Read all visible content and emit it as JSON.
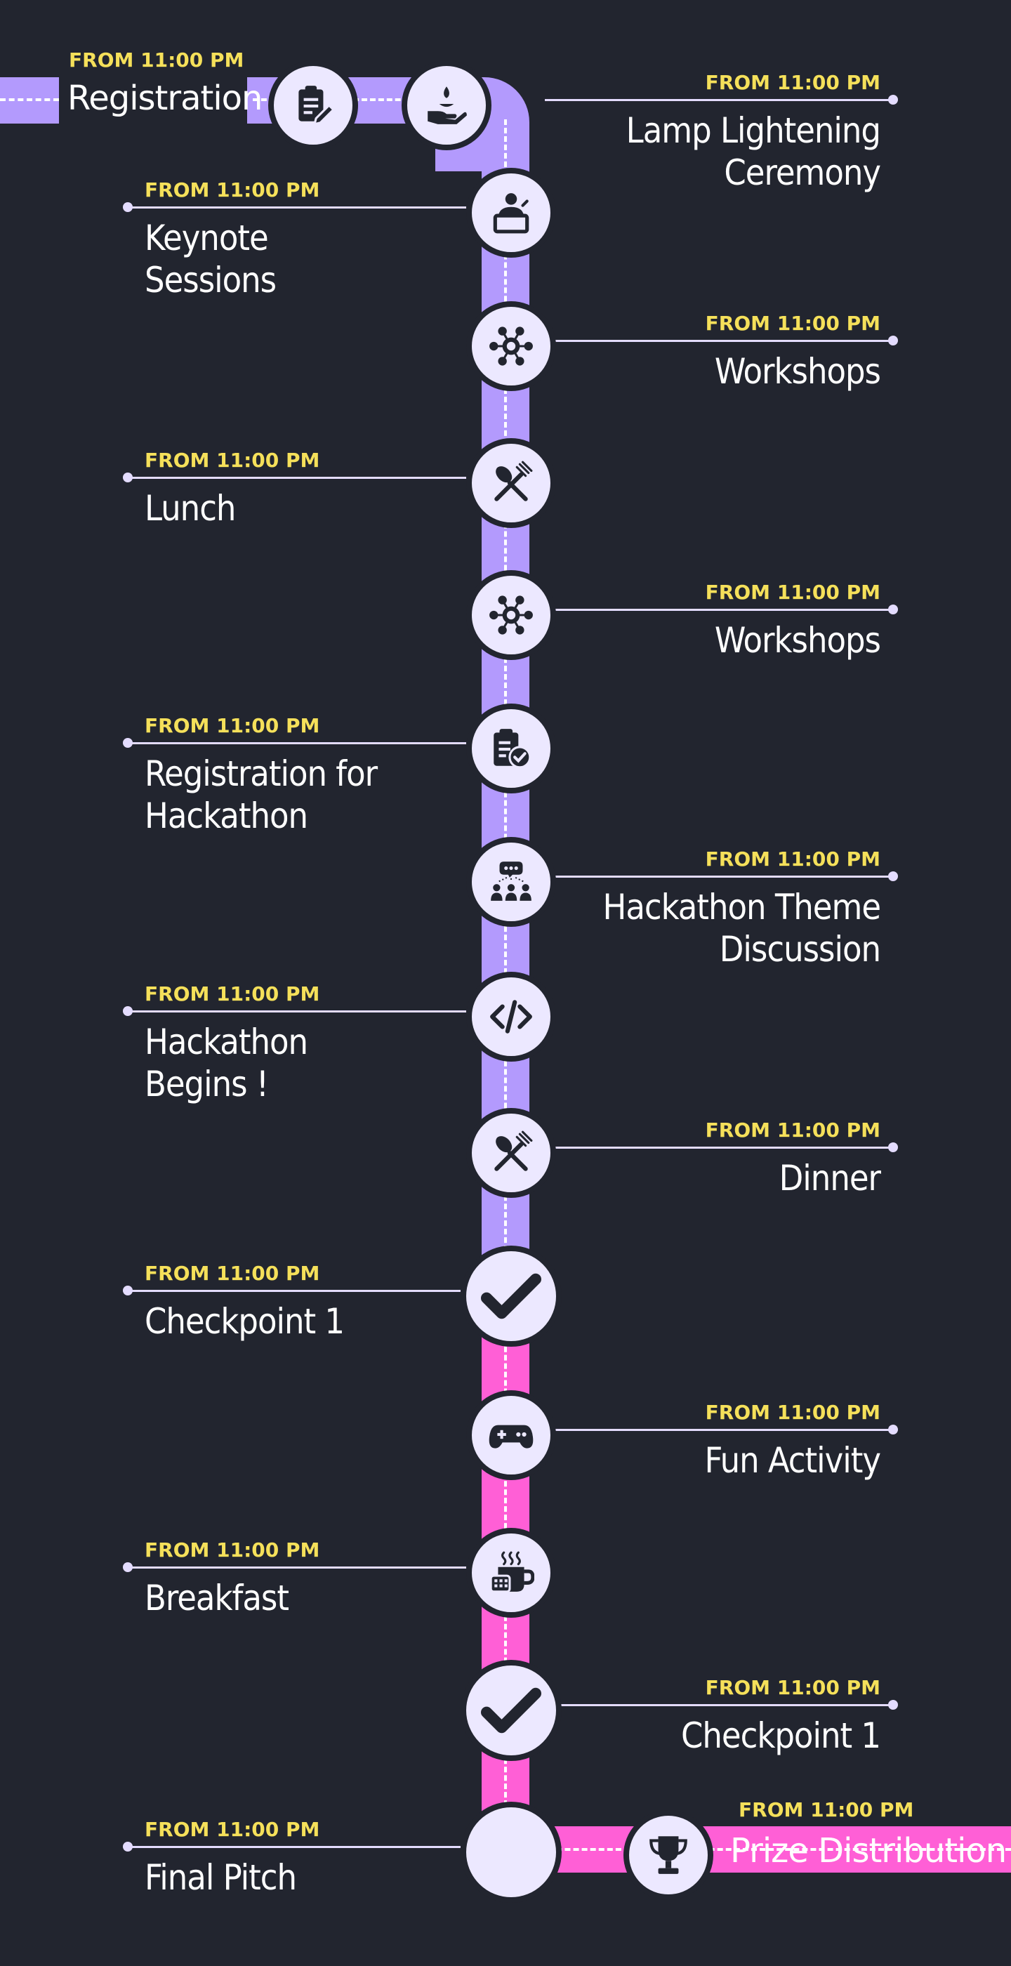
{
  "colors": {
    "background": "#22252f",
    "purple_track": "#b39afd",
    "pink_track": "#ff5fd6",
    "time": "#f5e05a",
    "node": "#ece8ff",
    "icon": "#22252f"
  },
  "start": {
    "time": "FROM 11:00 PM",
    "title": "Registration",
    "icon": "clipboard-pen-icon"
  },
  "events": [
    {
      "time": "FROM 11:00 PM",
      "title": "Lamp Lightening\nCeremony",
      "icon": "lamp-hand-icon",
      "side": "right"
    },
    {
      "time": "FROM 11:00 PM",
      "title": "Keynote\nSessions",
      "icon": "speaker-podium-icon",
      "side": "left"
    },
    {
      "time": "FROM 11:00 PM",
      "title": "Workshops",
      "icon": "network-hub-icon",
      "side": "right"
    },
    {
      "time": "FROM 11:00 PM",
      "title": "Lunch",
      "icon": "spoon-fork-icon",
      "side": "left"
    },
    {
      "time": "FROM 11:00 PM",
      "title": "Workshops",
      "icon": "network-hub-icon",
      "side": "right"
    },
    {
      "time": "FROM 11:00 PM",
      "title": "Registration for\nHackathon",
      "icon": "clipboard-check-icon",
      "side": "left"
    },
    {
      "time": "FROM 11:00 PM",
      "title": "Hackathon Theme\nDiscussion",
      "icon": "group-discussion-icon",
      "side": "right"
    },
    {
      "time": "FROM 11:00 PM",
      "title": "Hackathon\nBegins !",
      "icon": "code-brackets-icon",
      "side": "left"
    },
    {
      "time": "FROM 11:00 PM",
      "title": "Dinner",
      "icon": "spoon-fork-icon",
      "side": "right"
    },
    {
      "time": "FROM 11:00 PM",
      "title": "Checkpoint 1",
      "icon": "checkmark-icon",
      "side": "left"
    },
    {
      "time": "FROM 11:00 PM",
      "title": "Fun Activity",
      "icon": "gamepad-icon",
      "side": "right"
    },
    {
      "time": "FROM 11:00 PM",
      "title": "Breakfast",
      "icon": "coffee-cup-icon",
      "side": "left"
    },
    {
      "time": "FROM 11:00 PM",
      "title": "Checkpoint 1",
      "icon": "checkmark-icon",
      "side": "right"
    },
    {
      "time": "FROM 11:00 PM",
      "title": "Final Pitch",
      "icon": "",
      "side": "left"
    }
  ],
  "end": {
    "time": "FROM 11:00 PM",
    "title": "Prize Distribution",
    "icon": "trophy-icon"
  }
}
